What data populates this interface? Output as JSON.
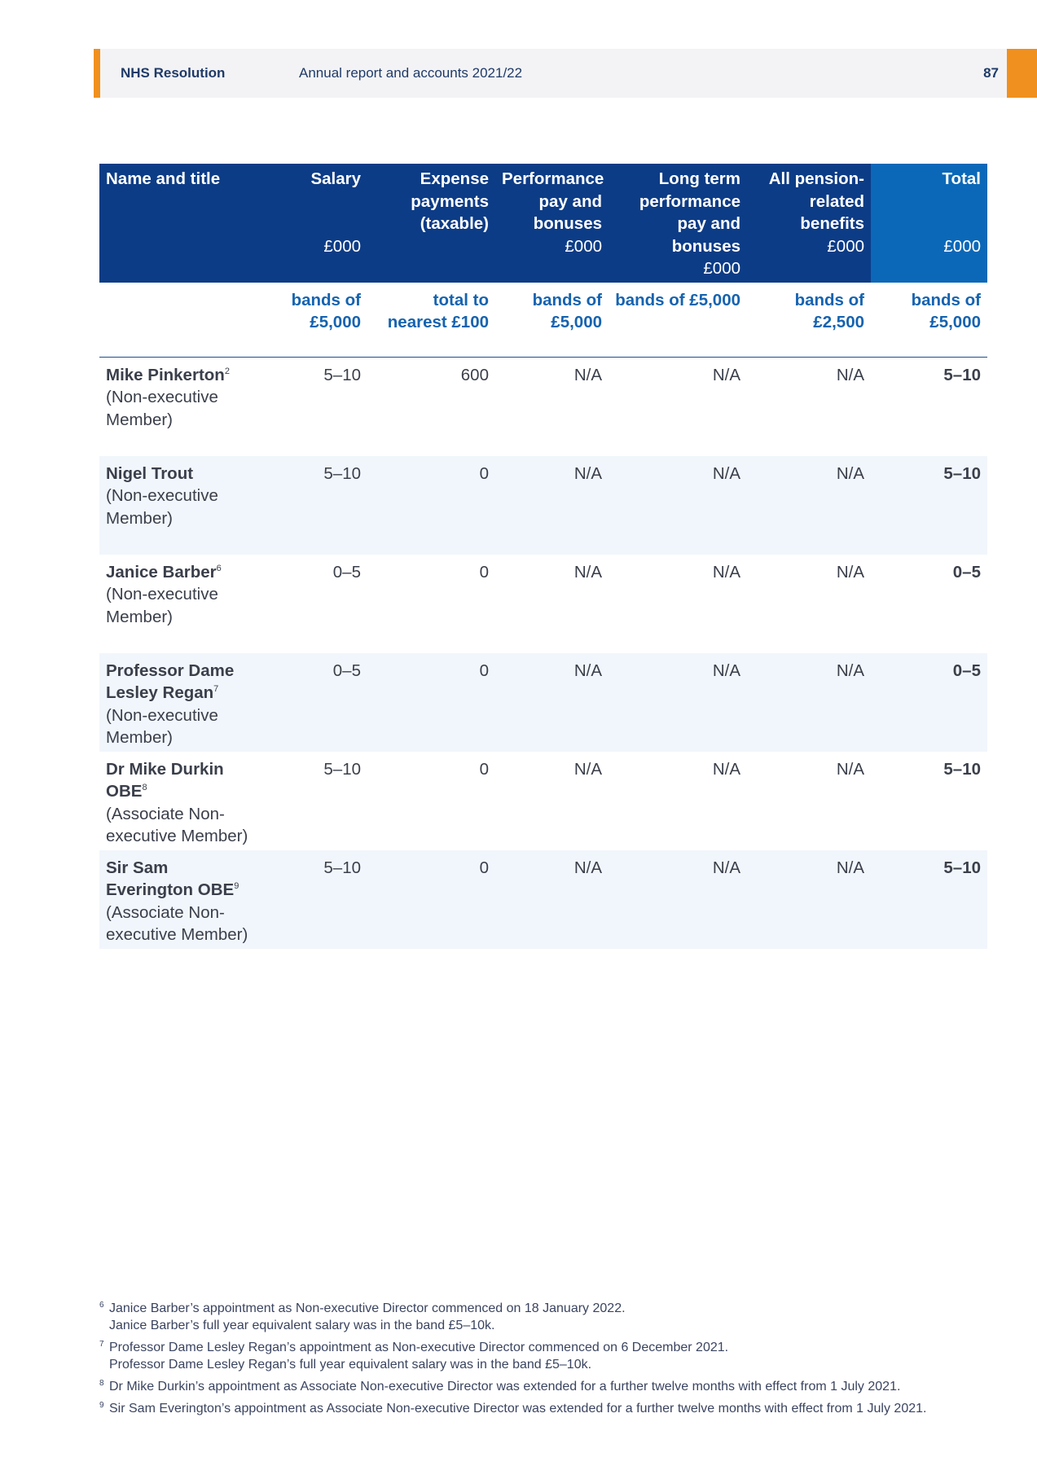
{
  "header": {
    "org": "NHS Resolution",
    "title": "Annual report and accounts 2021/22",
    "page": "87"
  },
  "table": {
    "columns": [
      {
        "label": "Name and title",
        "unit": "",
        "note": ""
      },
      {
        "label": "Salary",
        "unit": "£000",
        "note": "bands of £5,000"
      },
      {
        "label": "Expense payments (taxable)",
        "unit": "",
        "note": "total to nearest £100"
      },
      {
        "label": "Performance pay and bonuses",
        "unit": "£000",
        "note": "bands of £5,000"
      },
      {
        "label": "Long term performance pay and bonuses",
        "unit": "£000",
        "note": "bands of £5,000"
      },
      {
        "label": "All pension-related benefits",
        "unit": "£000",
        "note": "bands of £2,500"
      },
      {
        "label": "Total",
        "unit": "£000",
        "note": "bands of £5,000"
      }
    ],
    "rows": [
      {
        "name": "Mike Pinkerton",
        "sup": "2",
        "title": "(Non-executive Member)",
        "salary": "5–10",
        "expense": "600",
        "perf": "N/A",
        "longterm": "N/A",
        "pension": "N/A",
        "total": "5–10"
      },
      {
        "name": "Nigel Trout",
        "sup": "",
        "title": "(Non-executive Member)",
        "salary": "5–10",
        "expense": "0",
        "perf": "N/A",
        "longterm": "N/A",
        "pension": "N/A",
        "total": "5–10"
      },
      {
        "name": "Janice Barber",
        "sup": "6",
        "title": "(Non-executive Member)",
        "salary": "0–5",
        "expense": "0",
        "perf": "N/A",
        "longterm": "N/A",
        "pension": "N/A",
        "total": "0–5"
      },
      {
        "name": "Professor Dame Lesley Regan",
        "sup": "7",
        "title": "(Non-executive Member)",
        "salary": "0–5",
        "expense": "0",
        "perf": "N/A",
        "longterm": "N/A",
        "pension": "N/A",
        "total": "0–5"
      },
      {
        "name": "Dr Mike Durkin OBE",
        "sup": "8",
        "title": "(Associate Non-executive Member)",
        "salary": "5–10",
        "expense": "0",
        "perf": "N/A",
        "longterm": "N/A",
        "pension": "N/A",
        "total": "5–10"
      },
      {
        "name": "Sir Sam Everington OBE",
        "sup": "9",
        "title": "(Associate Non-executive Member)",
        "salary": "5–10",
        "expense": "0",
        "perf": "N/A",
        "longterm": "N/A",
        "pension": "N/A",
        "total": "5–10"
      }
    ]
  },
  "footnotes": [
    {
      "num": "6",
      "lines": [
        "Janice Barber’s appointment as Non-executive Director commenced on 18 January 2022.",
        "Janice Barber’s full year equivalent salary was in the band £5–10k."
      ]
    },
    {
      "num": "7",
      "lines": [
        "Professor Dame Lesley Regan’s appointment as Non-executive Director commenced on 6 December 2021.",
        "Professor Dame Lesley Regan’s full year equivalent salary was in the band £5–10k."
      ]
    },
    {
      "num": "8",
      "lines": [
        "Dr Mike Durkin’s appointment as Associate Non-executive Director was extended for a further twelve months with effect from 1 July 2021."
      ]
    },
    {
      "num": "9",
      "lines": [
        "Sir Sam Everington’s appointment as Associate Non-executive Director was extended for a further twelve months with effect from 1 July 2021."
      ]
    }
  ],
  "colors": {
    "header_blue": "#0d3c86",
    "total_blue": "#0b68b8",
    "accent_orange": "#f0901e",
    "subheader_text": "#1563b0"
  }
}
